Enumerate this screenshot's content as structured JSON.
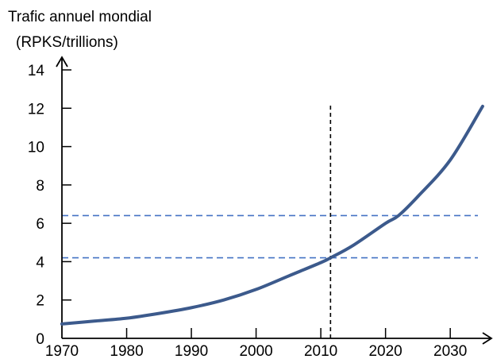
{
  "chart_data": {
    "type": "line",
    "title": "Trafic annuel mondial",
    "subtitle": "(RPKS/trillions)",
    "xlabel": "",
    "ylabel": "",
    "xlim": [
      1970,
      2035.5
    ],
    "ylim": [
      0,
      14
    ],
    "x_ticks": [
      "1970",
      "1980",
      "1990",
      "2000",
      "2010",
      "2020",
      "2030"
    ],
    "y_ticks": [
      "0",
      "2",
      "4",
      "6",
      "8",
      "10",
      "12",
      "14"
    ],
    "grid": false,
    "legend": "none",
    "series": [
      {
        "color": "#3c5a8c",
        "x": [
          1970,
          1975,
          1980,
          1985,
          1990,
          1995,
          2000,
          2005,
          2010,
          2011.5,
          2015,
          2020,
          2022,
          2025,
          2030,
          2035
        ],
        "y": [
          0.75,
          0.9,
          1.05,
          1.3,
          1.6,
          2.0,
          2.55,
          3.25,
          3.95,
          4.2,
          4.85,
          6.0,
          6.4,
          7.4,
          9.3,
          12.1
        ]
      }
    ],
    "annotations": {
      "vertical_line": {
        "x": 2011.5,
        "style": "dashed",
        "color": "#000000"
      },
      "horizontal_lines": [
        {
          "y": 4.2,
          "style": "dashed",
          "color": "#4472c4"
        },
        {
          "y": 6.4,
          "style": "dashed",
          "color": "#4472c4"
        }
      ]
    }
  }
}
